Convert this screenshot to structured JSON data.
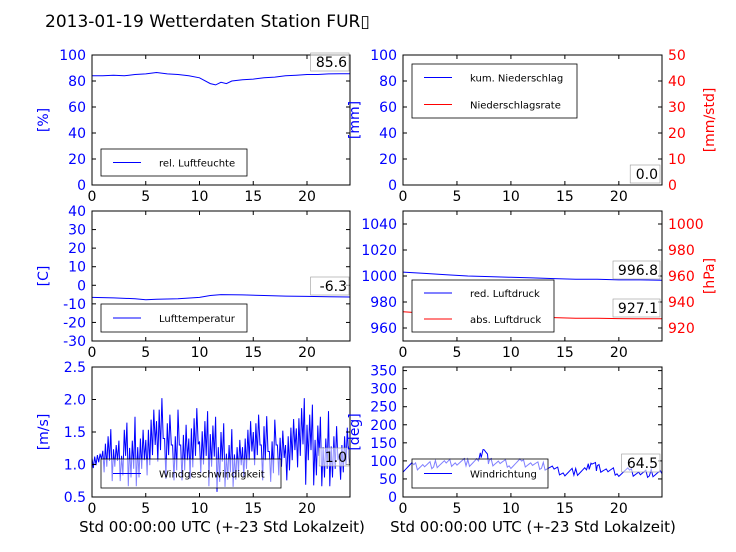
{
  "figure": {
    "title": "2013-01-19 Wetterdaten Station FUR▯",
    "xlabel": "Std 00:00:00 UTC (+-23 Std Lokalzeit)"
  },
  "colors": {
    "primary": "#0000ff",
    "secondary": "#ff0000",
    "text": "#000000"
  },
  "chart_data": [
    {
      "type": "line",
      "id": "humidity",
      "ylabel": "[%]",
      "ylim": [
        0,
        100
      ],
      "yticks": [
        0,
        20,
        40,
        60,
        80,
        100
      ],
      "xlim": [
        0,
        24
      ],
      "xticks": [
        0,
        5,
        10,
        15,
        20
      ],
      "legend": [
        "rel. Luftfeuchte"
      ],
      "legend_placement": "lower-left",
      "current_value": "85.6",
      "series": [
        {
          "name": "rel. Luftfeuchte",
          "color": "#0000ff",
          "x": [
            0,
            1,
            2,
            3,
            4,
            5,
            6,
            7,
            8,
            9,
            10,
            11,
            11.5,
            12,
            12.5,
            13,
            14,
            15,
            16,
            17,
            18,
            19,
            20,
            21,
            22,
            23,
            24
          ],
          "y": [
            84,
            84,
            84.5,
            84,
            85,
            85.5,
            86.5,
            85.5,
            85,
            84,
            82.5,
            78,
            77,
            79,
            78,
            80,
            81,
            81.5,
            82.5,
            83,
            84,
            84.5,
            85,
            85,
            85.5,
            85.6,
            85.6
          ]
        }
      ]
    },
    {
      "type": "line",
      "id": "precipitation",
      "ylabel": "[mm]",
      "ylabel2": "[mm/std]",
      "ylim": [
        0,
        100
      ],
      "yticks": [
        0,
        20,
        40,
        60,
        80,
        100
      ],
      "ylim2": [
        0,
        50
      ],
      "yticks2": [
        0,
        10,
        20,
        30,
        40,
        50
      ],
      "xlim": [
        0,
        24
      ],
      "xticks": [
        0,
        5,
        10,
        15,
        20
      ],
      "legend": [
        "kum. Niederschlag",
        "Niederschlagsrate"
      ],
      "legend_placement": "top-left",
      "current_value": "0.0",
      "current_value2": "0.0",
      "series": [
        {
          "name": "kum. Niederschlag",
          "color": "#0000ff",
          "x": [
            0,
            24
          ],
          "y": [
            0,
            0
          ]
        },
        {
          "name": "Niederschlagsrate",
          "color": "#ff0000",
          "x": [
            0,
            24
          ],
          "y": [
            0,
            0
          ]
        }
      ]
    },
    {
      "type": "line",
      "id": "temperature",
      "ylabel": "[C]",
      "ylim": [
        -30,
        40
      ],
      "yticks": [
        -30,
        -20,
        -10,
        0,
        10,
        20,
        30,
        40
      ],
      "xlim": [
        0,
        24
      ],
      "xticks": [
        0,
        5,
        10,
        15,
        20
      ],
      "legend": [
        "Lufttemperatur"
      ],
      "legend_placement": "lower-left",
      "current_value": "-6.3",
      "series": [
        {
          "name": "Lufttemperatur",
          "color": "#0000ff",
          "x": [
            0,
            2,
            4,
            5,
            6,
            8,
            10,
            11,
            12,
            14,
            16,
            18,
            20,
            22,
            24
          ],
          "y": [
            -6.5,
            -6.8,
            -7.2,
            -7.8,
            -7.5,
            -7.2,
            -6.5,
            -5.5,
            -5,
            -5.2,
            -5.5,
            -5.8,
            -6,
            -6.2,
            -6.3
          ]
        }
      ]
    },
    {
      "type": "line",
      "id": "pressure",
      "ylabel2": "[hPa]",
      "ylim": [
        950,
        1050
      ],
      "yticks": [
        960,
        980,
        1000,
        1020,
        1040
      ],
      "ylim2": [
        910,
        1010
      ],
      "yticks2": [
        920,
        940,
        960,
        980,
        1000
      ],
      "xlim": [
        0,
        24
      ],
      "xticks": [
        0,
        5,
        10,
        15,
        20
      ],
      "legend": [
        "red. Luftdruck",
        "abs. Luftdruck"
      ],
      "legend_placement": "lower-left",
      "current_value": "996.8",
      "current_value2": "927.1",
      "series": [
        {
          "name": "red. Luftdruck",
          "color": "#0000ff",
          "x": [
            0,
            2,
            4,
            6,
            8,
            10,
            12,
            14,
            16,
            18,
            20,
            22,
            24
          ],
          "y": [
            1003,
            1002,
            1001,
            1000,
            999.5,
            999,
            998.5,
            998,
            997.5,
            997.5,
            997,
            997,
            996.8
          ]
        },
        {
          "name": "abs. Luftdruck",
          "color": "#ff0000",
          "x": [
            0,
            2,
            4,
            6,
            8,
            10,
            12,
            14,
            16,
            18,
            20,
            22,
            24
          ],
          "y": [
            932.5,
            931.5,
            930.5,
            930,
            929.5,
            929,
            928.5,
            928,
            927.5,
            927.5,
            927.2,
            927.1,
            927.1
          ]
        }
      ]
    },
    {
      "type": "line",
      "id": "wind-speed",
      "ylabel": "[m/s]",
      "ylim": [
        0.5,
        2.5
      ],
      "yticks": [
        0.5,
        1.0,
        1.5,
        2.0,
        2.5
      ],
      "xlim": [
        0,
        24
      ],
      "xticks": [
        0,
        5,
        10,
        15,
        20
      ],
      "legend": [
        "Windgeschwindigkeit"
      ],
      "legend_placement": "lower-left",
      "current_value": "1.0",
      "series": [
        {
          "name": "Windgeschwindigkeit",
          "color": "#0000ff",
          "x": [
            0,
            1,
            2,
            3,
            4,
            5,
            6,
            7,
            8,
            9,
            10,
            11,
            12,
            13,
            14,
            15,
            16,
            17,
            18,
            19,
            20,
            21,
            22,
            23,
            24
          ],
          "y": [
            1.1,
            1.1,
            1.1,
            1.2,
            1.2,
            1.3,
            1.4,
            1.3,
            1.3,
            1.4,
            1.2,
            1.2,
            1.1,
            1.1,
            1.2,
            1.3,
            1.2,
            1.3,
            1.3,
            1.4,
            1.3,
            1.2,
            1.2,
            1.1,
            1.0
          ],
          "y_high": [
            1.2,
            1.6,
            1.4,
            1.7,
            1.8,
            2.0,
            2.2,
            1.9,
            2.0,
            2.1,
            1.9,
            1.8,
            1.7,
            1.6,
            1.8,
            1.9,
            1.9,
            1.8,
            1.9,
            2.1,
            2.0,
            1.8,
            1.9,
            1.7,
            1.5
          ],
          "y_low": [
            0.9,
            0.7,
            0.7,
            0.6,
            0.6,
            0.6,
            0.6,
            0.6,
            0.6,
            0.6,
            0.6,
            0.5,
            0.6,
            0.6,
            0.6,
            0.6,
            0.6,
            0.7,
            0.6,
            0.6,
            0.6,
            0.6,
            0.6,
            0.6,
            0.8
          ]
        }
      ]
    },
    {
      "type": "line",
      "id": "wind-direction",
      "ylabel": "[deg]",
      "ylim": [
        0,
        360
      ],
      "yticks": [
        0,
        50,
        100,
        150,
        200,
        250,
        300,
        350
      ],
      "xlim": [
        0,
        24
      ],
      "xticks": [
        0,
        5,
        10,
        15,
        20
      ],
      "legend": [
        "Windrichtung"
      ],
      "legend_placement": "lower-left",
      "current_value": "64.5",
      "series": [
        {
          "name": "Windrichtung",
          "color": "#0000ff",
          "x": [
            0,
            1,
            2,
            3,
            4,
            5,
            6,
            7,
            7.5,
            8,
            9,
            10,
            11,
            12,
            13,
            14,
            15,
            16,
            17,
            17.5,
            18,
            19,
            20,
            21,
            22,
            23,
            24
          ],
          "y": [
            80,
            85,
            88,
            90,
            92,
            95,
            95,
            100,
            140,
            95,
            95,
            90,
            95,
            92,
            85,
            75,
            65,
            70,
            75,
            100,
            80,
            72,
            68,
            70,
            66,
            65,
            64.5
          ]
        }
      ]
    }
  ]
}
